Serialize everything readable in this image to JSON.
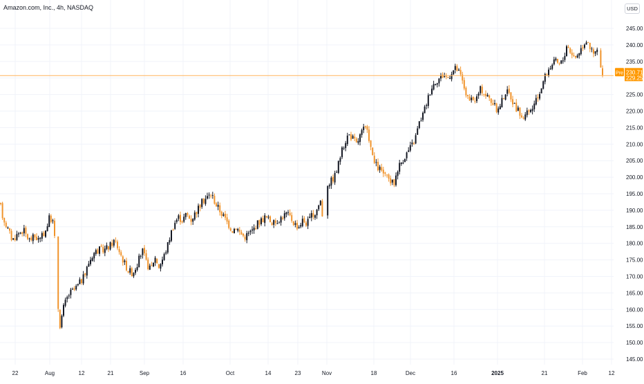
{
  "header": {
    "title": "Amazon.com, Inc., 4h, NASDAQ",
    "currency": "USD"
  },
  "price_tags": {
    "prev_label": "Pre",
    "prev_value": "230.71",
    "last_value": "229.25",
    "prev_color": "#ff9800",
    "last_color": "#ff9800"
  },
  "colors": {
    "up": "#131722",
    "down": "#f0932b",
    "premarket": "#f0932b",
    "grid": "#f0f3fa",
    "axis_text": "#131722",
    "price_line": "#ffb35c"
  },
  "chart_data": {
    "type": "candlestick",
    "title": "Amazon.com, Inc., 4h, NASDAQ",
    "y_axis": {
      "ticks": [
        145,
        150,
        155,
        160,
        165,
        170,
        175,
        180,
        185,
        190,
        195,
        200,
        205,
        210,
        215,
        220,
        225,
        230,
        235,
        240,
        245
      ],
      "range": [
        142.5,
        247.5
      ],
      "unit": "USD",
      "position": "right"
    },
    "x_axis": {
      "ticks": [
        "22",
        "Aug",
        "12",
        "21",
        "Sep",
        "16",
        "Oct",
        "14",
        "23",
        "Nov",
        "18",
        "Dec",
        "16",
        "2025",
        "21",
        "Feb",
        "12"
      ],
      "bold_ticks": [
        "2025"
      ],
      "time_range": [
        "2024-07-18",
        "2025-02-12"
      ]
    },
    "grid": true,
    "key_prices": {
      "pre_market": 230.71,
      "last": 229.25
    },
    "path": [
      [
        0,
        192
      ],
      [
        4,
        188
      ],
      [
        10,
        185
      ],
      [
        18,
        181
      ],
      [
        26,
        183
      ],
      [
        34,
        184
      ],
      [
        42,
        181
      ],
      [
        50,
        182
      ],
      [
        58,
        181
      ],
      [
        66,
        184
      ],
      [
        72,
        188
      ],
      [
        78,
        186
      ],
      [
        83,
        163
      ],
      [
        87,
        155
      ],
      [
        91,
        160
      ],
      [
        96,
        163
      ],
      [
        101,
        165
      ],
      [
        108,
        166
      ],
      [
        115,
        168
      ],
      [
        122,
        170
      ],
      [
        128,
        174
      ],
      [
        135,
        177
      ],
      [
        142,
        178
      ],
      [
        150,
        178
      ],
      [
        158,
        179
      ],
      [
        166,
        181
      ],
      [
        172,
        178
      ],
      [
        178,
        175
      ],
      [
        185,
        172
      ],
      [
        192,
        171
      ],
      [
        199,
        174
      ],
      [
        206,
        178
      ],
      [
        212,
        174
      ],
      [
        218,
        172
      ],
      [
        224,
        176
      ],
      [
        230,
        173
      ],
      [
        237,
        176
      ],
      [
        242,
        179
      ],
      [
        247,
        183
      ],
      [
        252,
        186
      ],
      [
        258,
        188
      ],
      [
        264,
        187
      ],
      [
        270,
        189
      ],
      [
        276,
        187
      ],
      [
        282,
        189
      ],
      [
        288,
        191
      ],
      [
        294,
        193
      ],
      [
        300,
        194
      ],
      [
        306,
        195
      ],
      [
        312,
        192
      ],
      [
        318,
        190
      ],
      [
        324,
        188
      ],
      [
        330,
        186
      ],
      [
        336,
        184
      ],
      [
        342,
        185
      ],
      [
        348,
        183
      ],
      [
        354,
        182
      ],
      [
        360,
        183
      ],
      [
        366,
        184
      ],
      [
        372,
        186
      ],
      [
        378,
        187
      ],
      [
        384,
        188
      ],
      [
        390,
        187
      ],
      [
        396,
        186
      ],
      [
        402,
        187
      ],
      [
        408,
        188
      ],
      [
        414,
        189
      ],
      [
        420,
        188
      ],
      [
        426,
        186
      ],
      [
        432,
        185
      ],
      [
        438,
        187
      ],
      [
        444,
        186
      ],
      [
        450,
        188
      ],
      [
        456,
        189
      ],
      [
        460,
        191
      ],
      [
        464,
        193
      ],
      [
        468,
        186
      ],
      [
        474,
        198
      ],
      [
        480,
        199
      ],
      [
        486,
        201
      ],
      [
        492,
        206
      ],
      [
        498,
        210
      ],
      [
        504,
        213
      ],
      [
        510,
        212
      ],
      [
        516,
        210
      ],
      [
        522,
        213
      ],
      [
        528,
        215
      ],
      [
        534,
        212
      ],
      [
        540,
        205
      ],
      [
        546,
        203
      ],
      [
        552,
        202
      ],
      [
        558,
        200
      ],
      [
        564,
        199
      ],
      [
        570,
        198
      ],
      [
        576,
        203
      ],
      [
        582,
        205
      ],
      [
        588,
        207
      ],
      [
        594,
        209
      ],
      [
        600,
        211
      ],
      [
        606,
        216
      ],
      [
        612,
        219
      ],
      [
        618,
        223
      ],
      [
        624,
        227
      ],
      [
        630,
        229
      ],
      [
        636,
        230
      ],
      [
        642,
        231
      ],
      [
        648,
        230
      ],
      [
        654,
        232
      ],
      [
        660,
        233
      ],
      [
        666,
        231
      ],
      [
        672,
        227
      ],
      [
        678,
        223
      ],
      [
        684,
        223
      ],
      [
        690,
        224
      ],
      [
        696,
        227
      ],
      [
        702,
        225
      ],
      [
        708,
        224
      ],
      [
        714,
        222
      ],
      [
        720,
        220
      ],
      [
        726,
        223
      ],
      [
        732,
        226
      ],
      [
        738,
        225
      ],
      [
        744,
        222
      ],
      [
        750,
        220
      ],
      [
        756,
        218
      ],
      [
        762,
        219
      ],
      [
        768,
        220
      ],
      [
        774,
        222
      ],
      [
        780,
        225
      ],
      [
        786,
        229
      ],
      [
        792,
        232
      ],
      [
        798,
        234
      ],
      [
        804,
        235
      ],
      [
        810,
        234
      ],
      [
        816,
        236
      ],
      [
        820,
        240
      ],
      [
        826,
        238
      ],
      [
        832,
        236
      ],
      [
        838,
        238
      ],
      [
        844,
        240
      ],
      [
        850,
        242
      ],
      [
        856,
        238
      ],
      [
        860,
        237
      ],
      [
        866,
        239
      ],
      [
        870,
        232
      ],
      [
        874,
        229
      ]
    ]
  }
}
